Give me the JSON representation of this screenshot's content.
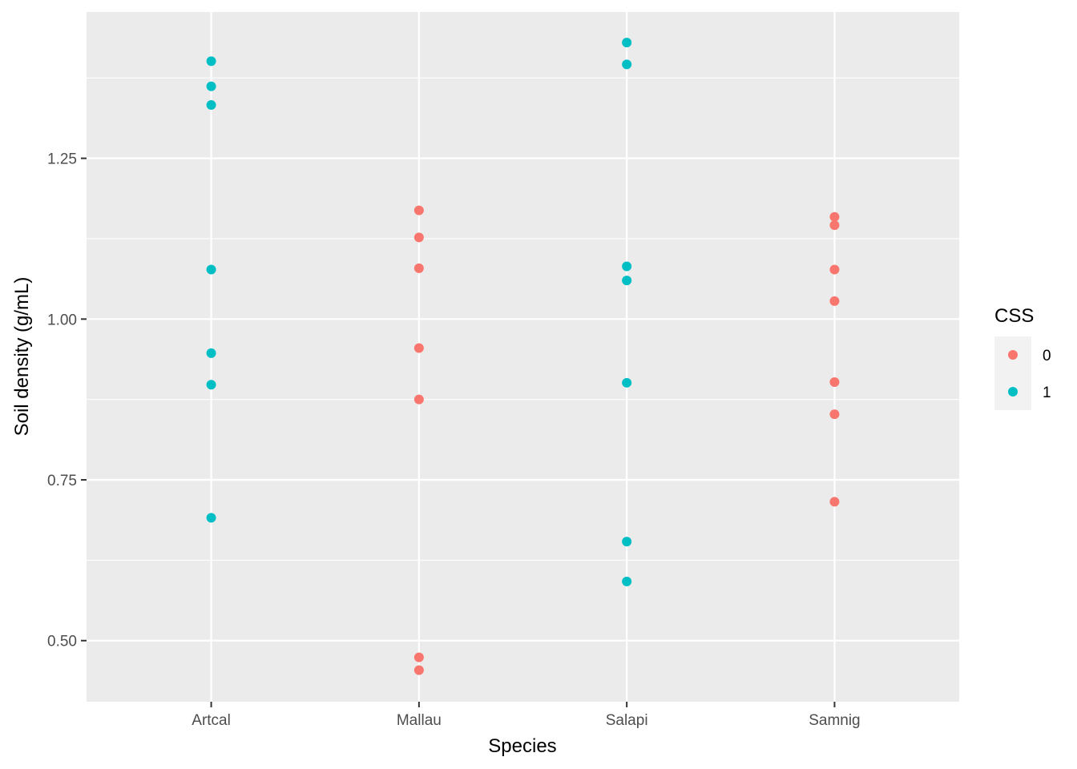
{
  "chart_data": {
    "type": "scatter",
    "xlabel": "Species",
    "ylabel": "Soil density (g/mL)",
    "categories": [
      "Artcal",
      "Mallau",
      "Salapi",
      "Samnig"
    ],
    "ylim": [
      0.405,
      1.4775
    ],
    "yticks": [
      0.5,
      0.75,
      1.0,
      1.25
    ],
    "ytick_labels": [
      "0.50",
      "0.75",
      "1.00",
      "1.25"
    ],
    "grid": true,
    "legend": {
      "title": "CSS",
      "position": "right",
      "entries": [
        {
          "label": "0",
          "color": "#F8766D"
        },
        {
          "label": "1",
          "color": "#00BFC4"
        }
      ]
    },
    "series": [
      {
        "name": "0",
        "color": "#F8766D",
        "points": [
          {
            "x": "Mallau",
            "y": 1.169
          },
          {
            "x": "Mallau",
            "y": 1.127
          },
          {
            "x": "Mallau",
            "y": 1.079
          },
          {
            "x": "Mallau",
            "y": 0.955
          },
          {
            "x": "Mallau",
            "y": 0.875
          },
          {
            "x": "Mallau",
            "y": 0.474
          },
          {
            "x": "Mallau",
            "y": 0.454
          },
          {
            "x": "Samnig",
            "y": 1.159
          },
          {
            "x": "Samnig",
            "y": 1.146
          },
          {
            "x": "Samnig",
            "y": 1.077
          },
          {
            "x": "Samnig",
            "y": 1.028
          },
          {
            "x": "Samnig",
            "y": 0.902
          },
          {
            "x": "Samnig",
            "y": 0.852
          },
          {
            "x": "Samnig",
            "y": 0.716
          }
        ]
      },
      {
        "name": "1",
        "color": "#00BFC4",
        "points": [
          {
            "x": "Artcal",
            "y": 1.401
          },
          {
            "x": "Artcal",
            "y": 1.362
          },
          {
            "x": "Artcal",
            "y": 1.333
          },
          {
            "x": "Artcal",
            "y": 1.077
          },
          {
            "x": "Artcal",
            "y": 0.947
          },
          {
            "x": "Artcal",
            "y": 0.898
          },
          {
            "x": "Artcal",
            "y": 0.691
          },
          {
            "x": "Salapi",
            "y": 1.43
          },
          {
            "x": "Salapi",
            "y": 1.396
          },
          {
            "x": "Salapi",
            "y": 1.082
          },
          {
            "x": "Salapi",
            "y": 1.06
          },
          {
            "x": "Salapi",
            "y": 0.901
          },
          {
            "x": "Salapi",
            "y": 0.654
          },
          {
            "x": "Salapi",
            "y": 0.592
          }
        ]
      }
    ]
  }
}
